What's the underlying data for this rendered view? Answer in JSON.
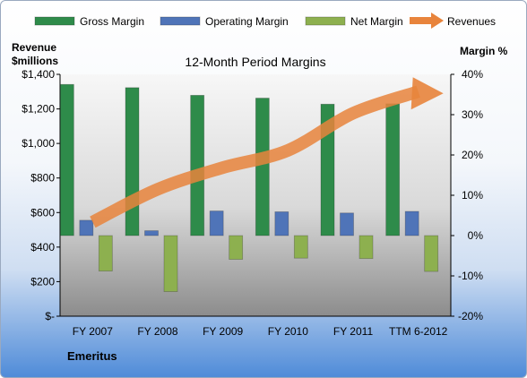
{
  "chart_data": {
    "type": "bar",
    "title": "12-Month Period Margins",
    "company": "Emeritus",
    "categories": [
      "FY 2007",
      "FY 2008",
      "FY 2009",
      "FY 2010",
      "FY 2011",
      "TTM 6-2012"
    ],
    "y_left_label": "Revenue\n$millions",
    "y_left_label_lines": [
      "Revenue",
      "$millions"
    ],
    "y_right_label": "Margin %",
    "y_left_ticks": [
      "$-",
      "$200",
      "$400",
      "$600",
      "$800",
      "$1,000",
      "$1,200",
      "$1,400"
    ],
    "y_right_ticks": [
      "-20%",
      "-10%",
      "0%",
      "10%",
      "20%",
      "30%",
      "40%"
    ],
    "ylim_left": [
      0,
      1400
    ],
    "ylim_right": [
      -20,
      40
    ],
    "series": [
      {
        "name": "Gross Margin",
        "axis": "right",
        "kind": "bar",
        "color": "#2e8b4a",
        "values": [
          37.5,
          36.7,
          34.8,
          34.1,
          32.6,
          32.7
        ]
      },
      {
        "name": "Operating Margin",
        "axis": "right",
        "kind": "bar",
        "color": "#4f74b8",
        "values": [
          3.8,
          1.2,
          6.1,
          5.9,
          5.6,
          6.0
        ]
      },
      {
        "name": "Net Margin",
        "axis": "right",
        "kind": "bar",
        "color": "#8db04f",
        "values": [
          -8.8,
          -13.9,
          -5.9,
          -5.6,
          -5.7,
          -8.9
        ]
      },
      {
        "name": "Revenues",
        "axis": "left",
        "kind": "line",
        "color": "#e8843c",
        "values": [
          545,
          735,
          860,
          960,
          1175,
          1300
        ]
      }
    ],
    "legend_position": "top",
    "grid": false
  }
}
